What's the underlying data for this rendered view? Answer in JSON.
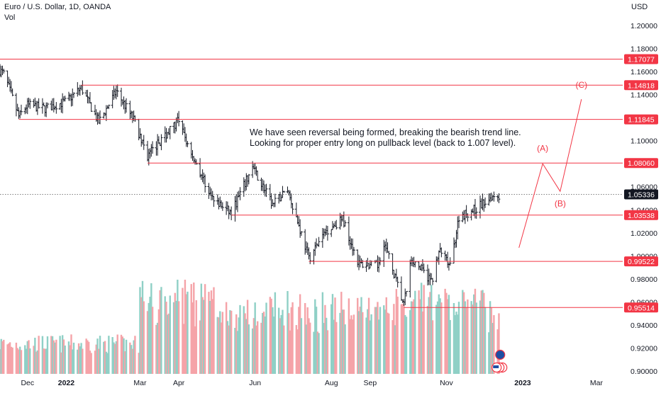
{
  "header": {
    "title": "Euro / U.S. Dollar, 1D, OANDA",
    "volume_label": "Vol",
    "currency": "USD"
  },
  "annotation": {
    "line1": "We have seen reversal being formed, breaking the bearish trend line.",
    "line2": "Looking for proper entry long on pullback level (back to 1.007 level)."
  },
  "colors": {
    "candle": "#131722",
    "level": "#f23645",
    "vol_up": "#8fd0c6",
    "vol_down": "#f5a3a8",
    "axis_text": "#131722",
    "current_bg": "#131722"
  },
  "chart_data": {
    "type": "candlestick",
    "symbol": "EURUSD",
    "timeframe": "1D",
    "ylim": [
      0.895,
      1.21
    ],
    "y_ticks": [
      "1.20000",
      "1.18000",
      "1.16000",
      "1.14000",
      "1.12000",
      "1.10000",
      "1.08000",
      "1.06000",
      "1.04000",
      "1.02000",
      "1.00000",
      "0.98000",
      "0.96000",
      "0.94000",
      "0.92000",
      "0.90000"
    ],
    "x_range": [
      "2021-11-09",
      "2023-03-22"
    ],
    "x_ticks": [
      {
        "date": "2021-12-01",
        "label": "Dec"
      },
      {
        "date": "2022-01-01",
        "label": "2022"
      },
      {
        "date": "2022-03-01",
        "label": "Mar"
      },
      {
        "date": "2022-04-01",
        "label": "Apr"
      },
      {
        "date": "2022-06-01",
        "label": "Jun"
      },
      {
        "date": "2022-08-01",
        "label": "Aug"
      },
      {
        "date": "2022-09-01",
        "label": "Sep"
      },
      {
        "date": "2022-11-01",
        "label": "Nov"
      },
      {
        "date": "2023-01-01",
        "label": "2023"
      },
      {
        "date": "2023-03-01",
        "label": "Mar"
      }
    ],
    "price_path": [
      [
        "2021-11-09",
        1.161
      ],
      [
        "2021-11-12",
        1.158
      ],
      [
        "2021-11-18",
        1.14
      ],
      [
        "2021-11-24",
        1.121
      ],
      [
        "2021-12-01",
        1.131
      ],
      [
        "2021-12-15",
        1.128
      ],
      [
        "2022-01-01",
        1.134
      ],
      [
        "2022-01-13",
        1.146
      ],
      [
        "2022-01-27",
        1.116
      ],
      [
        "2022-02-10",
        1.143
      ],
      [
        "2022-02-24",
        1.118
      ],
      [
        "2022-03-07",
        1.087
      ],
      [
        "2022-03-31",
        1.117
      ],
      [
        "2022-04-15",
        1.08
      ],
      [
        "2022-04-28",
        1.049
      ],
      [
        "2022-05-13",
        1.037
      ],
      [
        "2022-05-30",
        1.077
      ],
      [
        "2022-06-15",
        1.044
      ],
      [
        "2022-06-27",
        1.058
      ],
      [
        "2022-07-14",
        0.998
      ],
      [
        "2022-07-28",
        1.022
      ],
      [
        "2022-08-10",
        1.032
      ],
      [
        "2022-08-23",
        0.993
      ],
      [
        "2022-09-07",
        0.991
      ],
      [
        "2022-09-12",
        1.012
      ],
      [
        "2022-09-28",
        0.957
      ],
      [
        "2022-10-04",
        0.998
      ],
      [
        "2022-10-20",
        0.978
      ],
      [
        "2022-10-27",
        1.005
      ],
      [
        "2022-11-04",
        0.99
      ],
      [
        "2022-11-11",
        1.034
      ],
      [
        "2022-11-25",
        1.041
      ],
      [
        "2022-12-07",
        1.052
      ],
      [
        "2022-12-13",
        1.053
      ]
    ],
    "volume_ylim": [
      0,
      100
    ],
    "levels": [
      {
        "price": 1.17077,
        "label": "1.17077",
        "from": "2021-11-09"
      },
      {
        "price": 1.14818,
        "label": "1.14818",
        "from": "2022-01-13"
      },
      {
        "price": 1.11845,
        "label": "1.11845",
        "from": "2021-11-24"
      },
      {
        "price": 1.0806,
        "label": "1.08060",
        "from": "2022-03-07"
      },
      {
        "price": 1.03538,
        "label": "1.03538",
        "from": "2022-05-13"
      },
      {
        "price": 0.99522,
        "label": "0.99522",
        "from": "2022-07-14"
      },
      {
        "price": 0.95514,
        "label": "0.95514",
        "from": "2022-09-28"
      }
    ],
    "current_price": {
      "price": 1.05336,
      "label": "1.05336"
    },
    "projection": [
      {
        "date": "2022-12-29",
        "price": 1.007
      },
      {
        "date": "2023-01-17",
        "price": 1.08
      },
      {
        "date": "2023-01-31",
        "price": 1.056
      },
      {
        "date": "2023-02-17",
        "price": 1.136
      }
    ],
    "waves": [
      {
        "label": "(A)",
        "date": "2023-01-17",
        "price": 1.091
      },
      {
        "label": "(B)",
        "date": "2023-01-31",
        "price": 1.043
      },
      {
        "label": "(C)",
        "date": "2023-02-17",
        "price": 1.146
      }
    ]
  }
}
